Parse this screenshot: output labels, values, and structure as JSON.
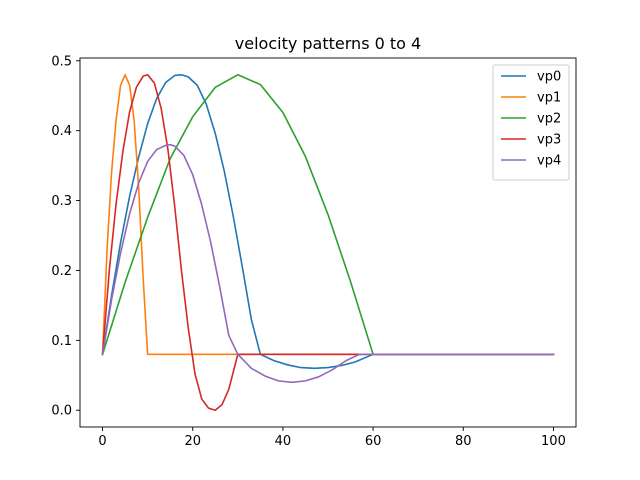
{
  "chart_data": {
    "type": "line",
    "title": "velocity patterns 0 to 4",
    "xlabel": "",
    "ylabel": "",
    "xlim": [
      -5,
      105
    ],
    "ylim": [
      -0.024,
      0.504
    ],
    "xticks": [
      0,
      20,
      40,
      60,
      80,
      100
    ],
    "yticks": [
      0.0,
      0.1,
      0.2,
      0.3,
      0.4,
      0.5
    ],
    "grid": false,
    "legend_position": "top-right",
    "series": [
      {
        "name": "vp0",
        "color": "#1f77b4",
        "x": [
          0,
          2,
          4,
          6,
          8,
          10,
          12,
          14,
          16,
          17.5,
          19,
          21,
          23,
          25,
          27,
          29,
          31,
          33,
          35,
          38,
          41,
          44,
          47,
          50,
          53,
          56,
          60,
          70,
          80,
          90,
          100
        ],
        "y": [
          0.08,
          0.164,
          0.24,
          0.306,
          0.362,
          0.41,
          0.446,
          0.469,
          0.479,
          0.48,
          0.477,
          0.465,
          0.438,
          0.396,
          0.342,
          0.277,
          0.205,
          0.13,
          0.08,
          0.071,
          0.065,
          0.061,
          0.06,
          0.061,
          0.064,
          0.069,
          0.08,
          0.08,
          0.08,
          0.08,
          0.08
        ]
      },
      {
        "name": "vp1",
        "color": "#ff7f0e",
        "x": [
          0,
          1,
          2,
          3,
          4,
          5,
          6,
          7,
          8,
          9,
          10,
          20,
          40,
          60,
          80,
          100
        ],
        "y": [
          0.08,
          0.23,
          0.34,
          0.415,
          0.465,
          0.48,
          0.465,
          0.415,
          0.32,
          0.19,
          0.08,
          0.08,
          0.08,
          0.08,
          0.08,
          0.08
        ]
      },
      {
        "name": "vp2",
        "color": "#2ca02c",
        "x": [
          0,
          5,
          10,
          15,
          20,
          25,
          30,
          35,
          40,
          45,
          50,
          55,
          60,
          70,
          80,
          90,
          100
        ],
        "y": [
          0.08,
          0.183,
          0.276,
          0.36,
          0.42,
          0.462,
          0.48,
          0.466,
          0.426,
          0.363,
          0.28,
          0.184,
          0.08,
          0.08,
          0.08,
          0.08,
          0.08
        ]
      },
      {
        "name": "vp3",
        "color": "#d62728",
        "x": [
          0,
          1.5,
          3,
          4.5,
          6,
          7.5,
          9,
          10,
          11.5,
          13,
          14.5,
          16,
          17.5,
          19,
          20.5,
          22,
          23.5,
          25,
          26.5,
          28,
          30,
          40,
          56,
          70,
          80,
          90,
          100
        ],
        "y": [
          0.08,
          0.2,
          0.295,
          0.37,
          0.427,
          0.462,
          0.478,
          0.48,
          0.468,
          0.432,
          0.373,
          0.292,
          0.2,
          0.118,
          0.052,
          0.016,
          0.003,
          0.0,
          0.008,
          0.03,
          0.08,
          0.08,
          0.08,
          0.08,
          0.08,
          0.08,
          0.08
        ]
      },
      {
        "name": "vp4",
        "color": "#9467bd",
        "x": [
          0,
          2,
          4,
          6,
          8,
          10,
          12,
          14,
          15,
          16,
          18,
          20,
          22,
          24,
          26,
          28,
          30,
          33,
          36,
          39,
          42,
          45,
          48,
          51,
          54,
          57,
          60,
          70,
          80,
          90,
          100
        ],
        "y": [
          0.08,
          0.158,
          0.225,
          0.281,
          0.325,
          0.356,
          0.373,
          0.379,
          0.38,
          0.378,
          0.365,
          0.337,
          0.294,
          0.24,
          0.176,
          0.107,
          0.08,
          0.06,
          0.049,
          0.042,
          0.04,
          0.042,
          0.048,
          0.058,
          0.071,
          0.08,
          0.08,
          0.08,
          0.08,
          0.08,
          0.08
        ]
      }
    ]
  }
}
